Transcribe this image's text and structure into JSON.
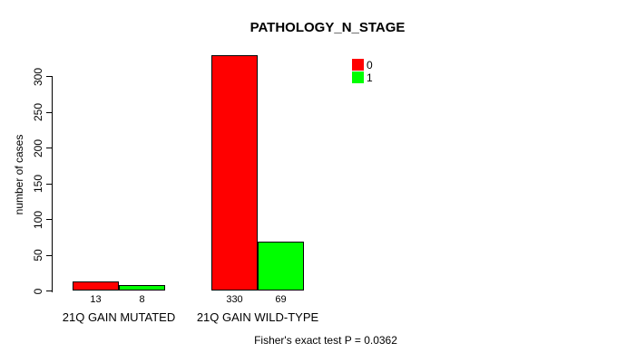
{
  "chart_data": {
    "type": "bar",
    "title": "PATHOLOGY_N_STAGE",
    "xlabel": "",
    "ylabel": "number of cases",
    "ylim": [
      0,
      330
    ],
    "yticks": [
      0,
      50,
      100,
      150,
      200,
      250,
      300
    ],
    "grid": false,
    "legend_position": "top-right",
    "categories": [
      "21Q GAIN MUTATED",
      "21Q GAIN WILD-TYPE"
    ],
    "series": [
      {
        "name": "0",
        "color": "#ff0000",
        "values": [
          13,
          330
        ]
      },
      {
        "name": "1",
        "color": "#00ff00",
        "values": [
          8,
          69
        ]
      }
    ],
    "annotation": "Fisher's exact test P = 0.0362"
  }
}
